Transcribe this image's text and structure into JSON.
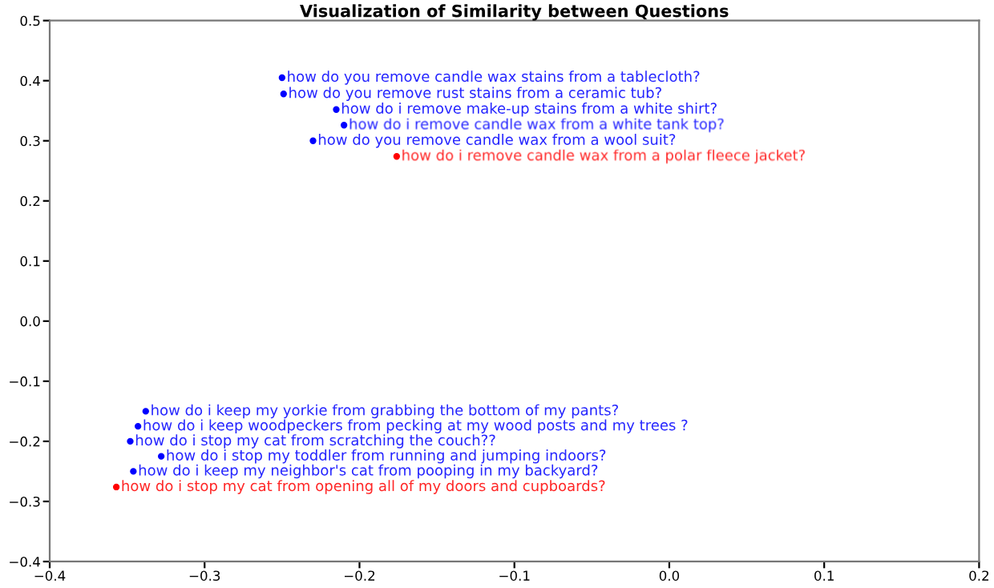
{
  "chart_data": {
    "type": "scatter",
    "title": "Visualization of Similarity between Questions",
    "marker": "circle",
    "grid": false,
    "series": [
      {
        "color": "#0000ff",
        "x": [
          -0.25,
          -0.249,
          -0.215,
          -0.21,
          -0.23,
          -0.338,
          -0.343,
          -0.348,
          -0.328,
          -0.346
        ],
        "values": [
          0.405,
          0.378,
          0.352,
          0.326,
          0.3,
          -0.15,
          -0.175,
          -0.2,
          -0.225,
          -0.25
        ]
      },
      {
        "color": "#ff0000",
        "x": [
          -0.176,
          -0.357
        ],
        "values": [
          0.274,
          -0.276
        ]
      }
    ],
    "annotations": [
      {
        "text": "how do you remove candle wax stains from a tablecloth?",
        "x": -0.25,
        "y": 0.405
      },
      {
        "text": "how do you remove rust stains from a ceramic tub?",
        "x": -0.249,
        "y": 0.378
      },
      {
        "text": "how do i remove make-up stains from a white shirt?",
        "x": -0.215,
        "y": 0.352
      },
      {
        "text": "how do i remove candle wax from a white tank top?",
        "x": -0.21,
        "y": 0.326
      },
      {
        "text": "how do you remove candle wax from a wool suit?",
        "x": -0.23,
        "y": 0.3
      },
      {
        "text": "how do i keep my yorkie from grabbing the bottom of my pants?",
        "x": -0.338,
        "y": -0.15
      },
      {
        "text": "how do i keep woodpeckers from pecking at my wood posts and my trees ?",
        "x": -0.343,
        "y": -0.175
      },
      {
        "text": "how do i stop my cat from scratching the couch??",
        "x": -0.348,
        "y": -0.2
      },
      {
        "text": "how do i stop my toddler from running and jumping indoors?",
        "x": -0.328,
        "y": -0.225
      },
      {
        "text": "how do i keep my neighbor's cat from pooping in my backyard?",
        "x": -0.346,
        "y": -0.25
      },
      {
        "text": "how do i remove candle wax from a polar fleece jacket?",
        "x": -0.176,
        "y": 0.274
      },
      {
        "text": "how do i stop my cat from opening all of my doors and cupboards?",
        "x": -0.357,
        "y": -0.276
      }
    ],
    "xlim": [
      -0.4,
      0.2
    ],
    "xticks": [
      {
        "value": -0.4,
        "label": "−0.4"
      },
      {
        "value": -0.3,
        "label": "−0.3"
      },
      {
        "value": -0.2,
        "label": "−0.2"
      },
      {
        "value": -0.1,
        "label": "−0.1"
      },
      {
        "value": 0.0,
        "label": "0.0"
      },
      {
        "value": 0.1,
        "label": "0.1"
      },
      {
        "value": 0.2,
        "label": "0.2"
      }
    ],
    "ylim": [
      -0.4,
      0.5
    ],
    "yticks": [
      {
        "value": -0.4,
        "label": "−0.4"
      },
      {
        "value": -0.3,
        "label": "−0.3"
      },
      {
        "value": -0.2,
        "label": "−0.2"
      },
      {
        "value": -0.1,
        "label": "−0.1"
      },
      {
        "value": 0.0,
        "label": "0.0"
      },
      {
        "value": 0.1,
        "label": "0.1"
      },
      {
        "value": 0.2,
        "label": "0.2"
      },
      {
        "value": 0.3,
        "label": "0.3"
      },
      {
        "value": 0.4,
        "label": "0.4"
      },
      {
        "value": 0.5,
        "label": "0.5"
      }
    ]
  }
}
